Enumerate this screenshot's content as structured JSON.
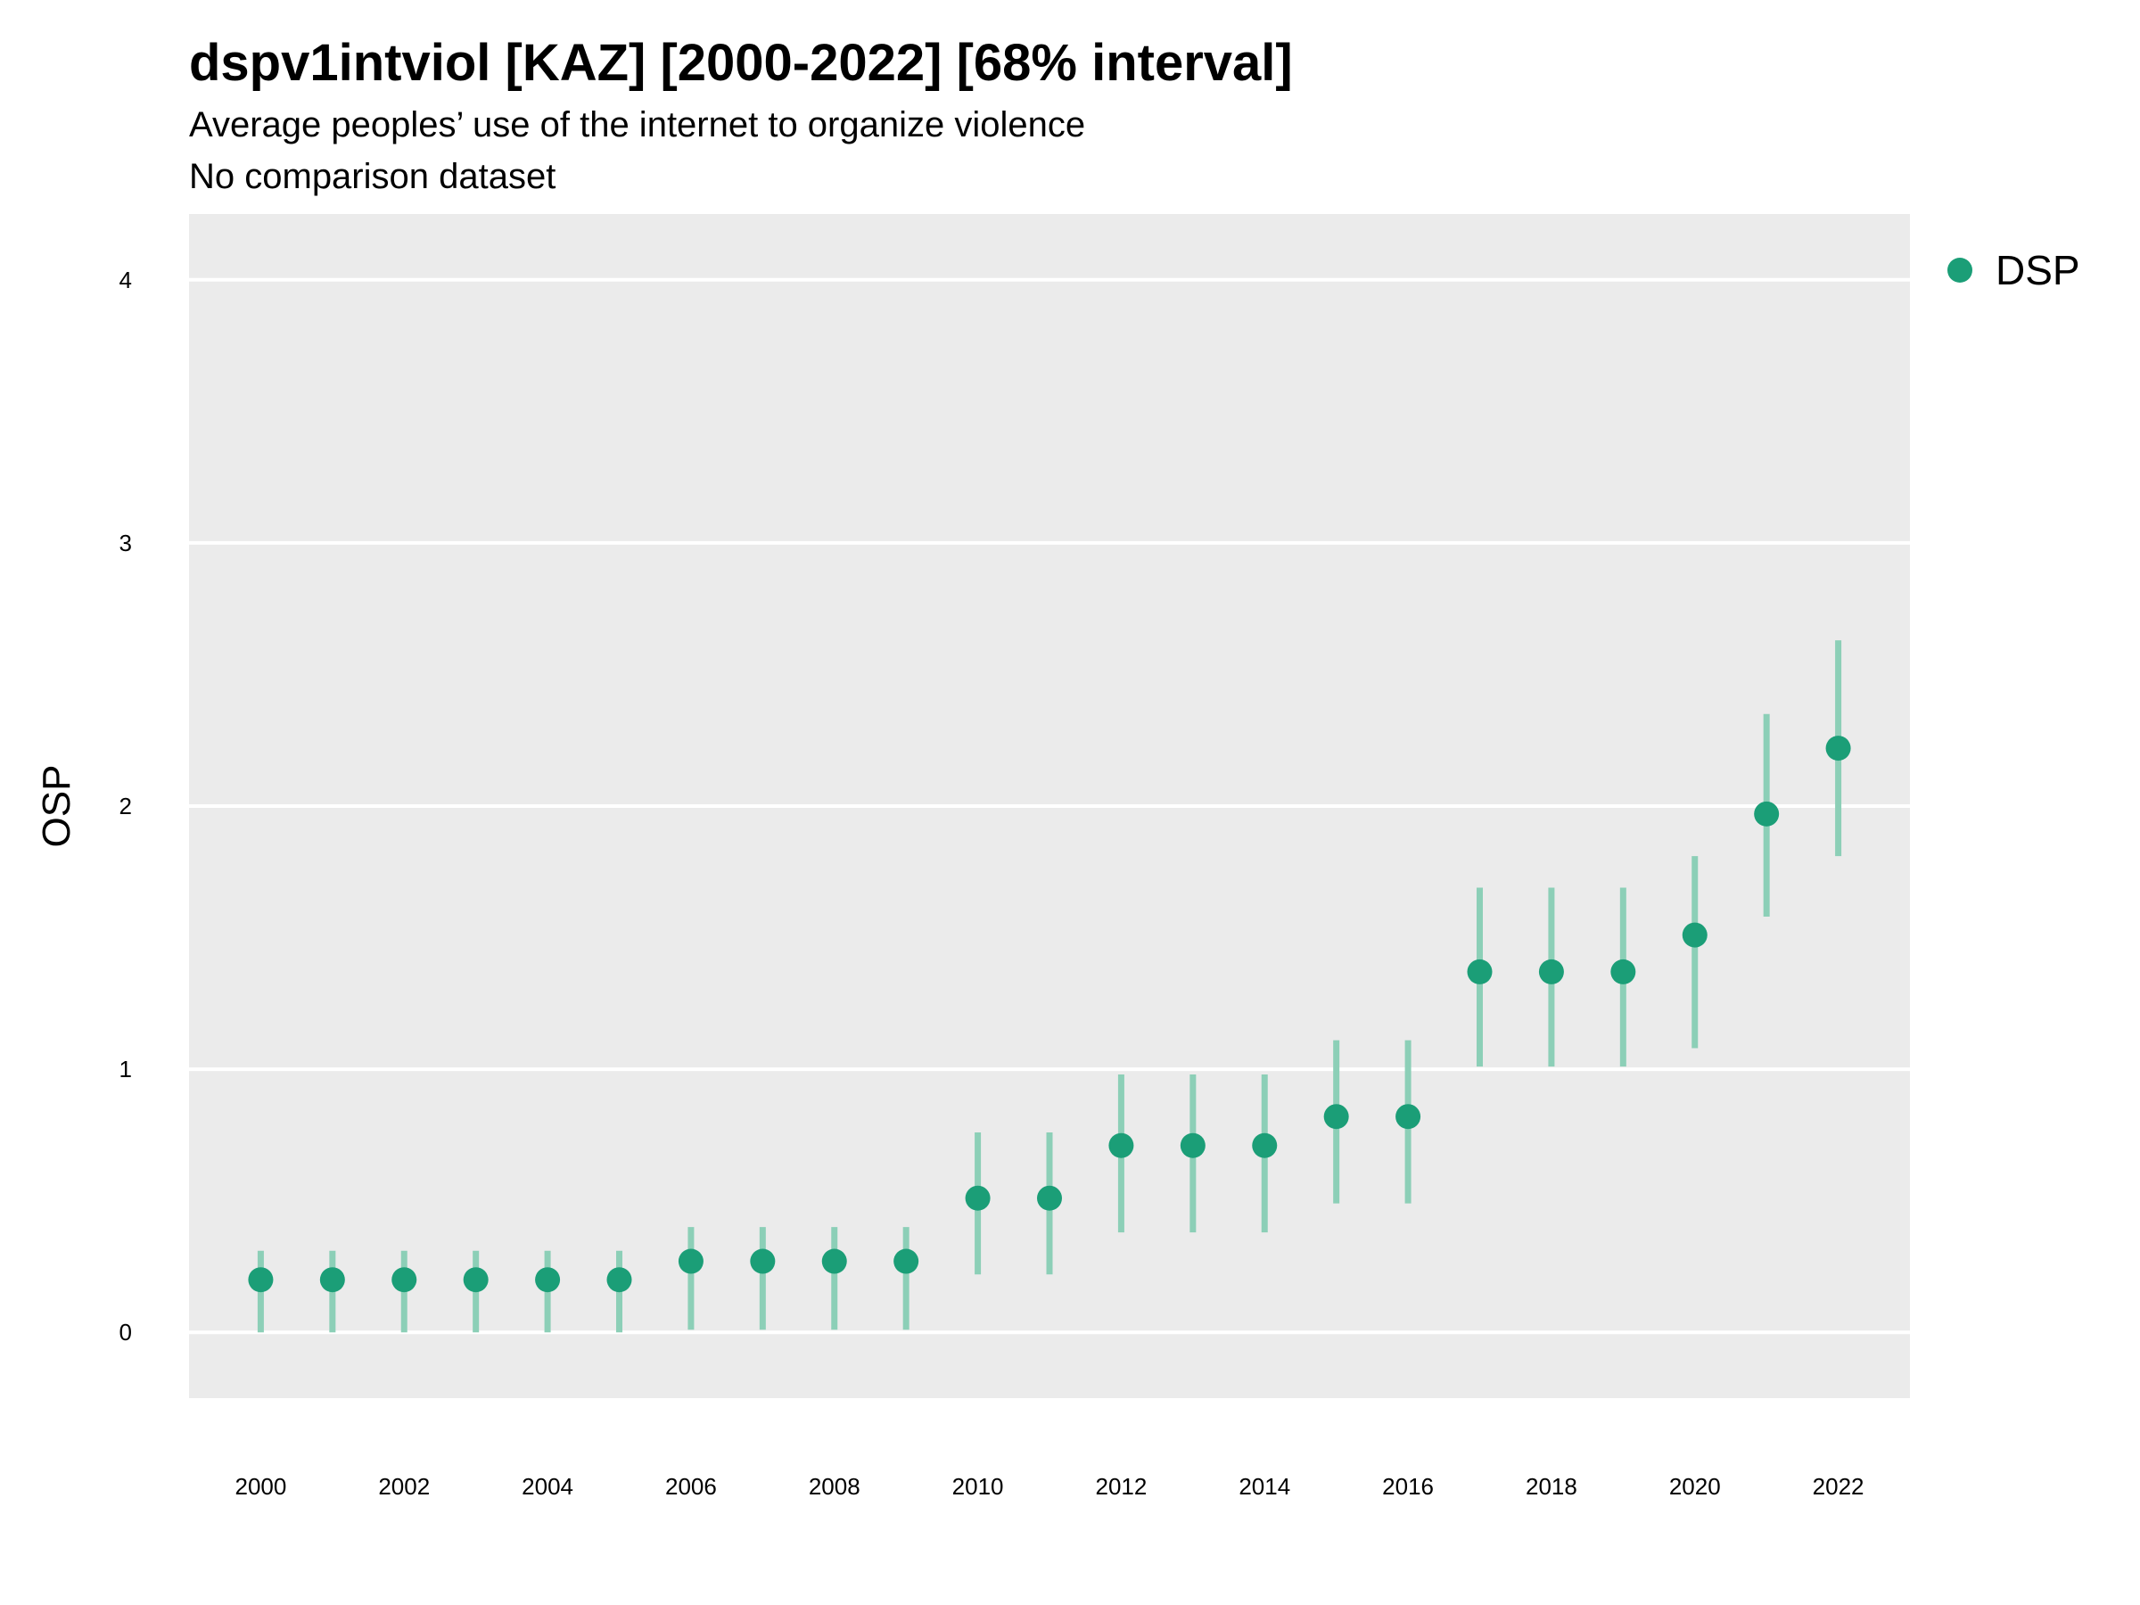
{
  "chart_data": {
    "type": "scatter",
    "title": "dspv1intviol [KAZ] [2000-2022] [68% interval]",
    "subtitle": "Average peoples’ use of the internet to organize violence",
    "subtitle2": "No comparison dataset",
    "xlabel": "",
    "ylabel": "OSP",
    "xlim": [
      1999,
      2023
    ],
    "ylim": [
      -0.25,
      4.25
    ],
    "x_ticks": [
      2000,
      2002,
      2004,
      2006,
      2008,
      2010,
      2012,
      2014,
      2016,
      2018,
      2020,
      2022
    ],
    "y_ticks": [
      0,
      1,
      2,
      3,
      4
    ],
    "grid": true,
    "legend": {
      "position": "right",
      "entries": [
        "DSP"
      ]
    },
    "colors": {
      "point": "#1b9e77",
      "interval": "#8ccfb7",
      "panel": "#ebebeb",
      "grid": "#ffffff"
    },
    "series": [
      {
        "name": "DSP",
        "points": [
          {
            "x": 2000,
            "y": 0.2,
            "lo": 0.0,
            "hi": 0.31
          },
          {
            "x": 2001,
            "y": 0.2,
            "lo": 0.0,
            "hi": 0.31
          },
          {
            "x": 2002,
            "y": 0.2,
            "lo": 0.0,
            "hi": 0.31
          },
          {
            "x": 2003,
            "y": 0.2,
            "lo": 0.0,
            "hi": 0.31
          },
          {
            "x": 2004,
            "y": 0.2,
            "lo": 0.0,
            "hi": 0.31
          },
          {
            "x": 2005,
            "y": 0.2,
            "lo": 0.0,
            "hi": 0.31
          },
          {
            "x": 2006,
            "y": 0.27,
            "lo": 0.01,
            "hi": 0.4
          },
          {
            "x": 2007,
            "y": 0.27,
            "lo": 0.01,
            "hi": 0.4
          },
          {
            "x": 2008,
            "y": 0.27,
            "lo": 0.01,
            "hi": 0.4
          },
          {
            "x": 2009,
            "y": 0.27,
            "lo": 0.01,
            "hi": 0.4
          },
          {
            "x": 2010,
            "y": 0.51,
            "lo": 0.22,
            "hi": 0.76
          },
          {
            "x": 2011,
            "y": 0.51,
            "lo": 0.22,
            "hi": 0.76
          },
          {
            "x": 2012,
            "y": 0.71,
            "lo": 0.38,
            "hi": 0.98
          },
          {
            "x": 2013,
            "y": 0.71,
            "lo": 0.38,
            "hi": 0.98
          },
          {
            "x": 2014,
            "y": 0.71,
            "lo": 0.38,
            "hi": 0.98
          },
          {
            "x": 2015,
            "y": 0.82,
            "lo": 0.49,
            "hi": 1.11
          },
          {
            "x": 2016,
            "y": 0.82,
            "lo": 0.49,
            "hi": 1.11
          },
          {
            "x": 2017,
            "y": 1.37,
            "lo": 1.01,
            "hi": 1.69
          },
          {
            "x": 2018,
            "y": 1.37,
            "lo": 1.01,
            "hi": 1.69
          },
          {
            "x": 2019,
            "y": 1.37,
            "lo": 1.01,
            "hi": 1.69
          },
          {
            "x": 2020,
            "y": 1.51,
            "lo": 1.08,
            "hi": 1.81
          },
          {
            "x": 2021,
            "y": 1.97,
            "lo": 1.58,
            "hi": 2.35
          },
          {
            "x": 2022,
            "y": 2.22,
            "lo": 1.81,
            "hi": 2.63
          }
        ]
      }
    ]
  }
}
